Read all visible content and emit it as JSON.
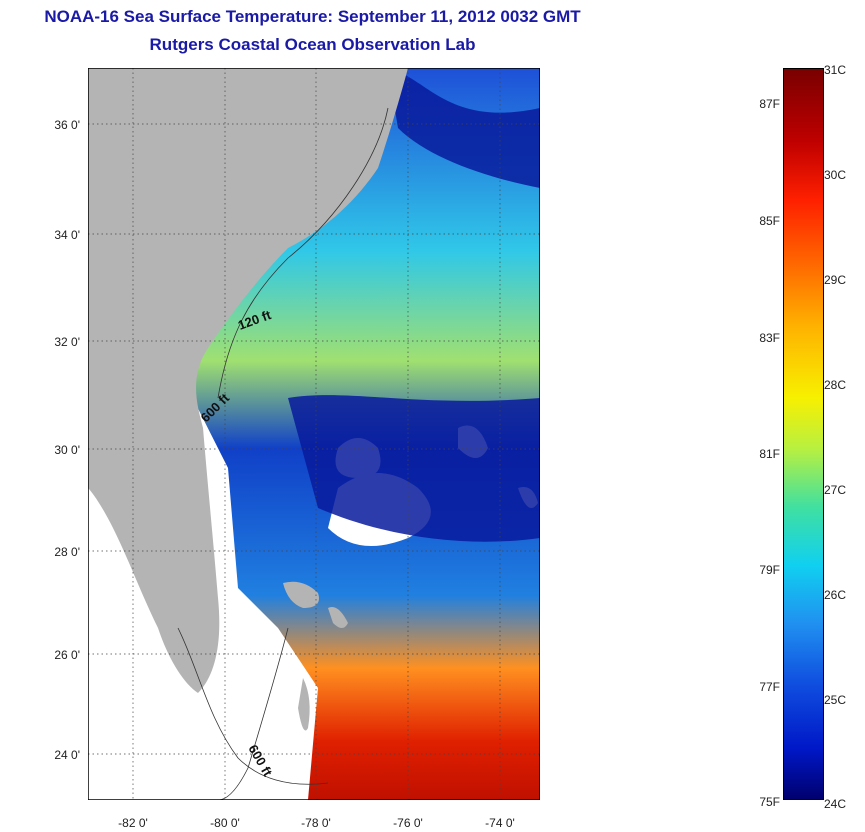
{
  "title": {
    "line1": "NOAA-16 Sea Surface Temperature:  September 11, 2012 0032 GMT",
    "line2": "Rutgers Coastal Ocean Observation Lab"
  },
  "map": {
    "lat_ticks": [
      "36 0'",
      "34 0'",
      "32 0'",
      "30 0'",
      "28 0'",
      "26 0'",
      "24 0'"
    ],
    "lon_ticks": [
      "-82 0'",
      "-80 0'",
      "-78 0'",
      "-76 0'",
      "-74 0'"
    ],
    "contour_labels": [
      "120 ft",
      "600 ft",
      "600 ft"
    ]
  },
  "colorbar": {
    "celsius": [
      "31C",
      "30C",
      "29C",
      "28C",
      "27C",
      "26C",
      "25C",
      "24C"
    ],
    "fahrenheit": [
      "87F",
      "85F",
      "83F",
      "81F",
      "79F",
      "77F",
      "75F"
    ]
  },
  "colors": {
    "title": "#1a1aa6",
    "land": "#b4b4b4",
    "cloud_mask": "#ffffff"
  }
}
